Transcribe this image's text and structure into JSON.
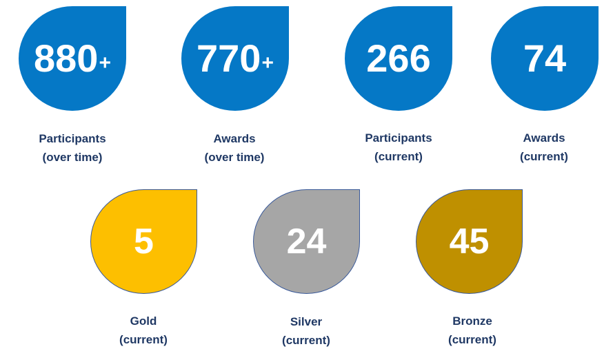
{
  "colors": {
    "blue": "#0578c6",
    "gold": "#fdbf00",
    "silver": "#a6a6a6",
    "bronze": "#bf9000",
    "outline": "#3a5a9a",
    "label": "#1f3864"
  },
  "top_row": [
    {
      "value": "880",
      "suffix": "+",
      "label_line1": "Participants",
      "label_line2": "(over time)"
    },
    {
      "value": "770",
      "suffix": "+",
      "label_line1": "Awards",
      "label_line2": "(over time)"
    },
    {
      "value": "266",
      "suffix": "",
      "label_line1": "Participants",
      "label_line2": "(current)"
    },
    {
      "value": "74",
      "suffix": "",
      "label_line1": "Awards",
      "label_line2": "(current)"
    }
  ],
  "bottom_row": [
    {
      "value": "5",
      "label_line1": "Gold",
      "label_line2": "(current)"
    },
    {
      "value": "24",
      "label_line1": "Silver",
      "label_line2": "(current)"
    },
    {
      "value": "45",
      "label_line1": "Bronze",
      "label_line2": "(current)"
    }
  ]
}
